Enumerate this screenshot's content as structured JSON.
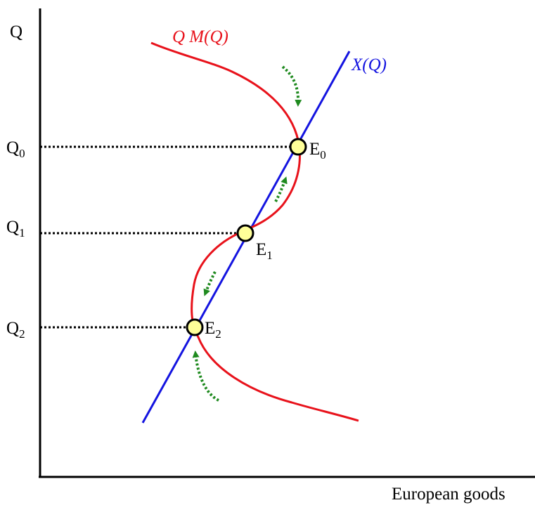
{
  "axes": {
    "y_label": "Q",
    "x_label": "European goods"
  },
  "levels": [
    {
      "base": "Q",
      "sub": "0"
    },
    {
      "base": "Q",
      "sub": "1"
    },
    {
      "base": "Q",
      "sub": "2"
    }
  ],
  "curves": {
    "qmq": {
      "label": "Q M(Q)",
      "color": "#e8121b"
    },
    "xq": {
      "label": "X(Q)",
      "color": "#1414e0"
    }
  },
  "equilibria": [
    {
      "base": "E",
      "sub": "0"
    },
    {
      "base": "E",
      "sub": "1"
    },
    {
      "base": "E",
      "sub": "2"
    }
  ],
  "colors": {
    "axis": "#000000",
    "point_fill": "#ffff99",
    "arrow": "#1f8a1f"
  }
}
